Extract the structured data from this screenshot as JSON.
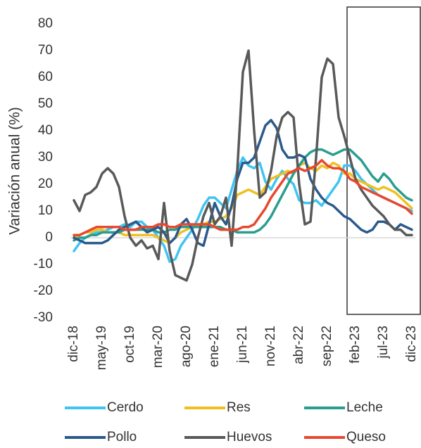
{
  "chart_data": {
    "type": "line",
    "y_label": "Variación anual (%)",
    "categories": [
      "dic-18",
      null,
      null,
      null,
      null,
      "may-19",
      null,
      null,
      null,
      null,
      "oct-19",
      null,
      null,
      null,
      null,
      "mar-20",
      null,
      null,
      null,
      null,
      "ago-20",
      null,
      null,
      null,
      null,
      "ene-21",
      null,
      null,
      null,
      null,
      "jun-21",
      null,
      null,
      null,
      null,
      "nov-21",
      null,
      null,
      null,
      null,
      "abr-22",
      null,
      null,
      null,
      null,
      "sep-22",
      null,
      null,
      null,
      null,
      "feb-23",
      null,
      null,
      null,
      null,
      "jul-23",
      null,
      null,
      null,
      null,
      "dic-23"
    ],
    "ylim": [
      -30,
      80
    ],
    "yticks": [
      -30,
      -20,
      -10,
      0,
      10,
      20,
      30,
      40,
      50,
      60,
      70,
      80
    ],
    "grid": false,
    "series": [
      {
        "name": "Cerdo",
        "color": "#40c4f2",
        "values": [
          -5,
          -2,
          0,
          1,
          2,
          2,
          3,
          4,
          4,
          5,
          4,
          6,
          6,
          4,
          3,
          0,
          -3,
          -9,
          -8,
          -3,
          0,
          3,
          7,
          12,
          15,
          15,
          13,
          11,
          18,
          25,
          30,
          27,
          26,
          28,
          21,
          18,
          22,
          25,
          22,
          20,
          14,
          13,
          13,
          14,
          12,
          15,
          18,
          21,
          27,
          27,
          25,
          22,
          20,
          18,
          16,
          15,
          14,
          13,
          12,
          11,
          10
        ]
      },
      {
        "name": "Res",
        "color": "#f0c020",
        "values": [
          0,
          1,
          2,
          2,
          3,
          3,
          2,
          2,
          2,
          1,
          1,
          1,
          1,
          1,
          1,
          0,
          -1,
          -2,
          0,
          2,
          3,
          4,
          5,
          5,
          6,
          6,
          7,
          8,
          11,
          16,
          17,
          18,
          17,
          16,
          19,
          22,
          23,
          24,
          25,
          24,
          27,
          28,
          26,
          25,
          27,
          26,
          28,
          27,
          24,
          24,
          22,
          21,
          20,
          19,
          18,
          19,
          18,
          17,
          15,
          13,
          11
        ]
      },
      {
        "name": "Leche",
        "color": "#2a9d8f",
        "values": [
          -1,
          0,
          0,
          1,
          1,
          2,
          2,
          2,
          2,
          3,
          3,
          3,
          3,
          3,
          3,
          2,
          2,
          3,
          3,
          4,
          4,
          4,
          4,
          4,
          4,
          4,
          4,
          3,
          3,
          2,
          2,
          2,
          2,
          3,
          5,
          8,
          12,
          16,
          20,
          24,
          27,
          30,
          32,
          33,
          33,
          32,
          31,
          32,
          33,
          33,
          31,
          29,
          26,
          23,
          21,
          24,
          22,
          19,
          17,
          15,
          14
        ]
      },
      {
        "name": "Pollo",
        "color": "#2a5a8c",
        "values": [
          0,
          -1,
          -2,
          -2,
          -2,
          -2,
          -1,
          1,
          3,
          4,
          5,
          6,
          4,
          2,
          3,
          4,
          2,
          -2,
          0,
          5,
          7,
          3,
          -2,
          -3,
          5,
          13,
          8,
          5,
          12,
          22,
          28,
          28,
          30,
          36,
          42,
          44,
          41,
          33,
          30,
          30,
          31,
          30,
          22,
          18,
          15,
          13,
          12,
          10,
          8,
          7,
          5,
          3,
          2,
          3,
          6,
          6,
          5,
          3,
          5,
          4,
          3
        ]
      },
      {
        "name": "Huevos",
        "color": "#595959",
        "values": [
          14,
          10,
          16,
          17,
          19,
          24,
          26,
          24,
          19,
          8,
          0,
          -3,
          -1,
          -4,
          -3,
          -8,
          13,
          -5,
          -14,
          -15,
          -16,
          -10,
          0,
          8,
          13,
          5,
          8,
          15,
          -3,
          25,
          62,
          70,
          40,
          15,
          17,
          25,
          38,
          45,
          47,
          45,
          20,
          5,
          6,
          30,
          60,
          67,
          65,
          45,
          38,
          30,
          22,
          18,
          15,
          12,
          10,
          8,
          5,
          3,
          3,
          1,
          1
        ]
      },
      {
        "name": "Queso",
        "color": "#e8482e",
        "values": [
          1,
          1,
          2,
          3,
          4,
          4,
          4,
          4,
          4,
          3,
          3,
          3,
          4,
          4,
          4,
          5,
          5,
          4,
          4,
          5,
          5,
          5,
          5,
          5,
          5,
          4,
          3,
          3,
          3,
          3,
          4,
          4,
          5,
          8,
          11,
          15,
          18,
          21,
          24,
          25,
          26,
          25,
          26,
          27,
          29,
          27,
          26,
          26,
          25,
          22,
          21,
          19,
          18,
          17,
          16,
          15,
          14,
          13,
          12,
          11,
          9
        ]
      }
    ]
  }
}
